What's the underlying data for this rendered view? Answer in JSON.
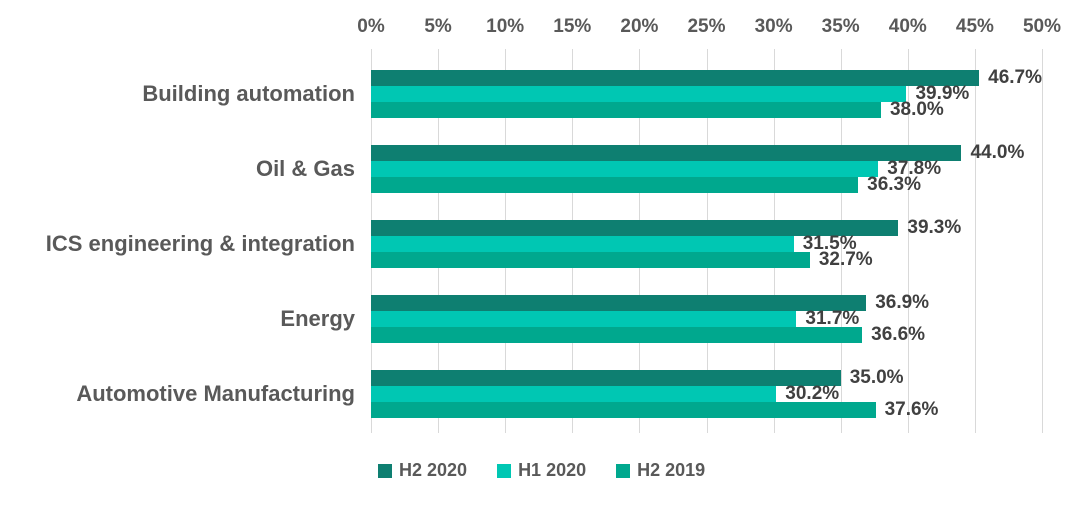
{
  "chart_data": {
    "type": "bar",
    "orientation": "horizontal",
    "categories": [
      "Building automation",
      "Oil & Gas",
      "ICS engineering & integration",
      "Energy",
      "Automotive Manufacturing"
    ],
    "series": [
      {
        "name": "H2 2020",
        "color": "#0e7f71",
        "values": [
          46.7,
          44.0,
          39.3,
          36.9,
          35.0
        ],
        "value_labels": [
          "46.7%",
          "44.0%",
          "39.3%",
          "36.9%",
          "35.0%"
        ]
      },
      {
        "name": "H1 2020",
        "color": "#00c7b3",
        "values": [
          39.9,
          37.8,
          31.5,
          31.7,
          30.2
        ],
        "value_labels": [
          "39.9%",
          "37.8%",
          "31.5%",
          "31.7%",
          "30.2%"
        ]
      },
      {
        "name": "H2 2019",
        "color": "#00a88e",
        "values": [
          38.0,
          36.3,
          32.7,
          36.6,
          37.6
        ],
        "value_labels": [
          "38.0%",
          "36.3%",
          "32.7%",
          "36.6%",
          "37.6%"
        ]
      }
    ],
    "x_axis": {
      "min": 0,
      "max": 50,
      "tick_step": 5,
      "tick_labels": [
        "0%",
        "5%",
        "10%",
        "15%",
        "20%",
        "25%",
        "30%",
        "35%",
        "40%",
        "45%",
        "50%"
      ],
      "position": "top"
    },
    "grid": true,
    "legend": {
      "position": "bottom",
      "entries": [
        "H2 2020",
        "H1 2020",
        "H2 2019"
      ]
    }
  },
  "colors": {
    "background": "#ffffff",
    "gridline": "#d9d9d9",
    "axis_text": "#595959",
    "category_text": "#595959",
    "value_text": "#404040",
    "legend_text": "#595959"
  }
}
